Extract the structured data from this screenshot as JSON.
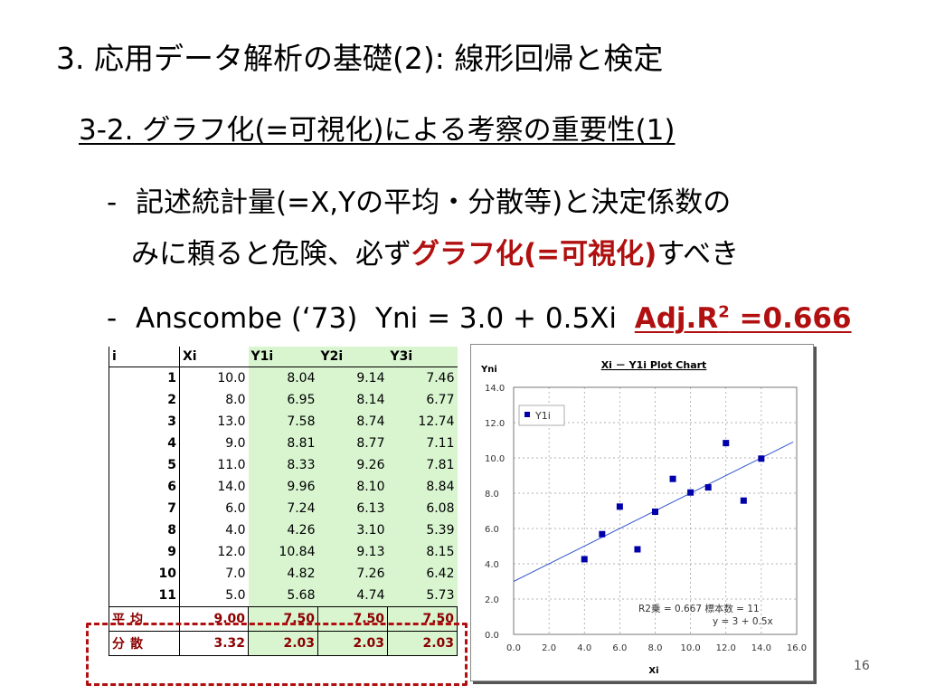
{
  "slide": {
    "title": "3. 応用データ解析の基礎(2): 線形回帰と検定",
    "subtitle": "3-2. グラフ化(=可視化)による考察の重要性(1)",
    "bullet1_dash": "-",
    "bullet1_line1": "記述統計量(=X,Yの平均・分散等)と決定係数の",
    "bullet1_line2_plain": "みに頼ると危険、必ず",
    "bullet1_line2_emph": "グラフ化(=可視化)",
    "bullet1_line2_tail": "すべき",
    "bullet2_dash": "-",
    "bullet2_text": "Anscombe (‘73)  Yni = 3.0 + 0.5Xi  ",
    "bullet2_adj": "Adj.R",
    "bullet2_adj_sup": "2",
    "bullet2_adj_value": " =0.666",
    "page_number": "16"
  },
  "table": {
    "headers": [
      "i",
      "Xi",
      "Y1i",
      "Y2i",
      "Y3i"
    ],
    "rows": [
      [
        "1",
        "10.0",
        "8.04",
        "9.14",
        "7.46"
      ],
      [
        "2",
        "8.0",
        "6.95",
        "8.14",
        "6.77"
      ],
      [
        "3",
        "13.0",
        "7.58",
        "8.74",
        "12.74"
      ],
      [
        "4",
        "9.0",
        "8.81",
        "8.77",
        "7.11"
      ],
      [
        "5",
        "11.0",
        "8.33",
        "9.26",
        "7.81"
      ],
      [
        "6",
        "14.0",
        "9.96",
        "8.10",
        "8.84"
      ],
      [
        "7",
        "6.0",
        "7.24",
        "6.13",
        "6.08"
      ],
      [
        "8",
        "4.0",
        "4.26",
        "3.10",
        "5.39"
      ],
      [
        "9",
        "12.0",
        "10.84",
        "9.13",
        "8.15"
      ],
      [
        "10",
        "7.0",
        "4.82",
        "7.26",
        "6.42"
      ],
      [
        "11",
        "5.0",
        "5.68",
        "4.74",
        "5.73"
      ]
    ],
    "stats": [
      [
        "平均",
        "9.00",
        "7.50",
        "7.50",
        "7.50"
      ],
      [
        "分散",
        "3.32",
        "2.03",
        "2.03",
        "2.03"
      ]
    ],
    "highlight_color": "#d8f5d0",
    "stat_text_color": "#8b0000"
  },
  "chart_data": {
    "type": "scatter",
    "title": "Xi － Y1i Plot Chart",
    "xlabel": "Xi",
    "ylabel": "Yni",
    "xlim": [
      0,
      16
    ],
    "ylim": [
      0,
      14
    ],
    "x_ticks": [
      "0.0",
      "2.0",
      "4.0",
      "6.0",
      "8.0",
      "10.0",
      "12.0",
      "14.0",
      "16.0"
    ],
    "y_ticks": [
      "0.0",
      "2.0",
      "4.0",
      "6.0",
      "8.0",
      "10.0",
      "12.0",
      "14.0"
    ],
    "grid": true,
    "legend": "top-left",
    "series": [
      {
        "name": "Y1i",
        "color": "#0000aa",
        "x": [
          10,
          8,
          13,
          9,
          11,
          14,
          6,
          4,
          12,
          7,
          5
        ],
        "y": [
          8.04,
          6.95,
          7.58,
          8.81,
          8.33,
          9.96,
          7.24,
          4.26,
          10.84,
          4.82,
          5.68
        ]
      }
    ],
    "trendline": {
      "intercept": 3,
      "slope": 0.5,
      "color": "#3355cc"
    },
    "annotation_line1": "R2乗 = 0.667   標本数 = 11",
    "annotation_line2": "y = 3 + 0.5x"
  }
}
